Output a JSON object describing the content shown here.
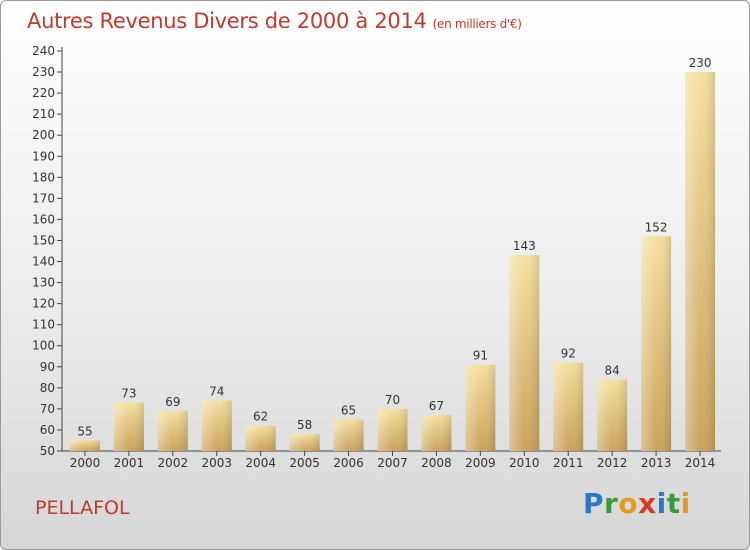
{
  "chart_data": {
    "type": "bar",
    "title": "Autres Revenus Divers de 2000 à 2014",
    "subtitle": "(en milliers d'€)",
    "categories": [
      "2000",
      "2001",
      "2002",
      "2003",
      "2004",
      "2005",
      "2006",
      "2007",
      "2008",
      "2009",
      "2010",
      "2011",
      "2012",
      "2013",
      "2014"
    ],
    "values": [
      55,
      73,
      69,
      74,
      62,
      58,
      65,
      70,
      67,
      91,
      143,
      92,
      84,
      152,
      230
    ],
    "ylim": [
      50,
      240
    ],
    "yticks": [
      50,
      60,
      70,
      80,
      90,
      100,
      110,
      120,
      130,
      140,
      150,
      160,
      170,
      180,
      190,
      200,
      210,
      220,
      230,
      240
    ],
    "grid": false,
    "bar_color": "#e8c77c"
  },
  "location": "PELLAFOL",
  "logo": {
    "letters": [
      "P",
      "r",
      "o",
      "x",
      "i",
      "t",
      "i"
    ]
  }
}
